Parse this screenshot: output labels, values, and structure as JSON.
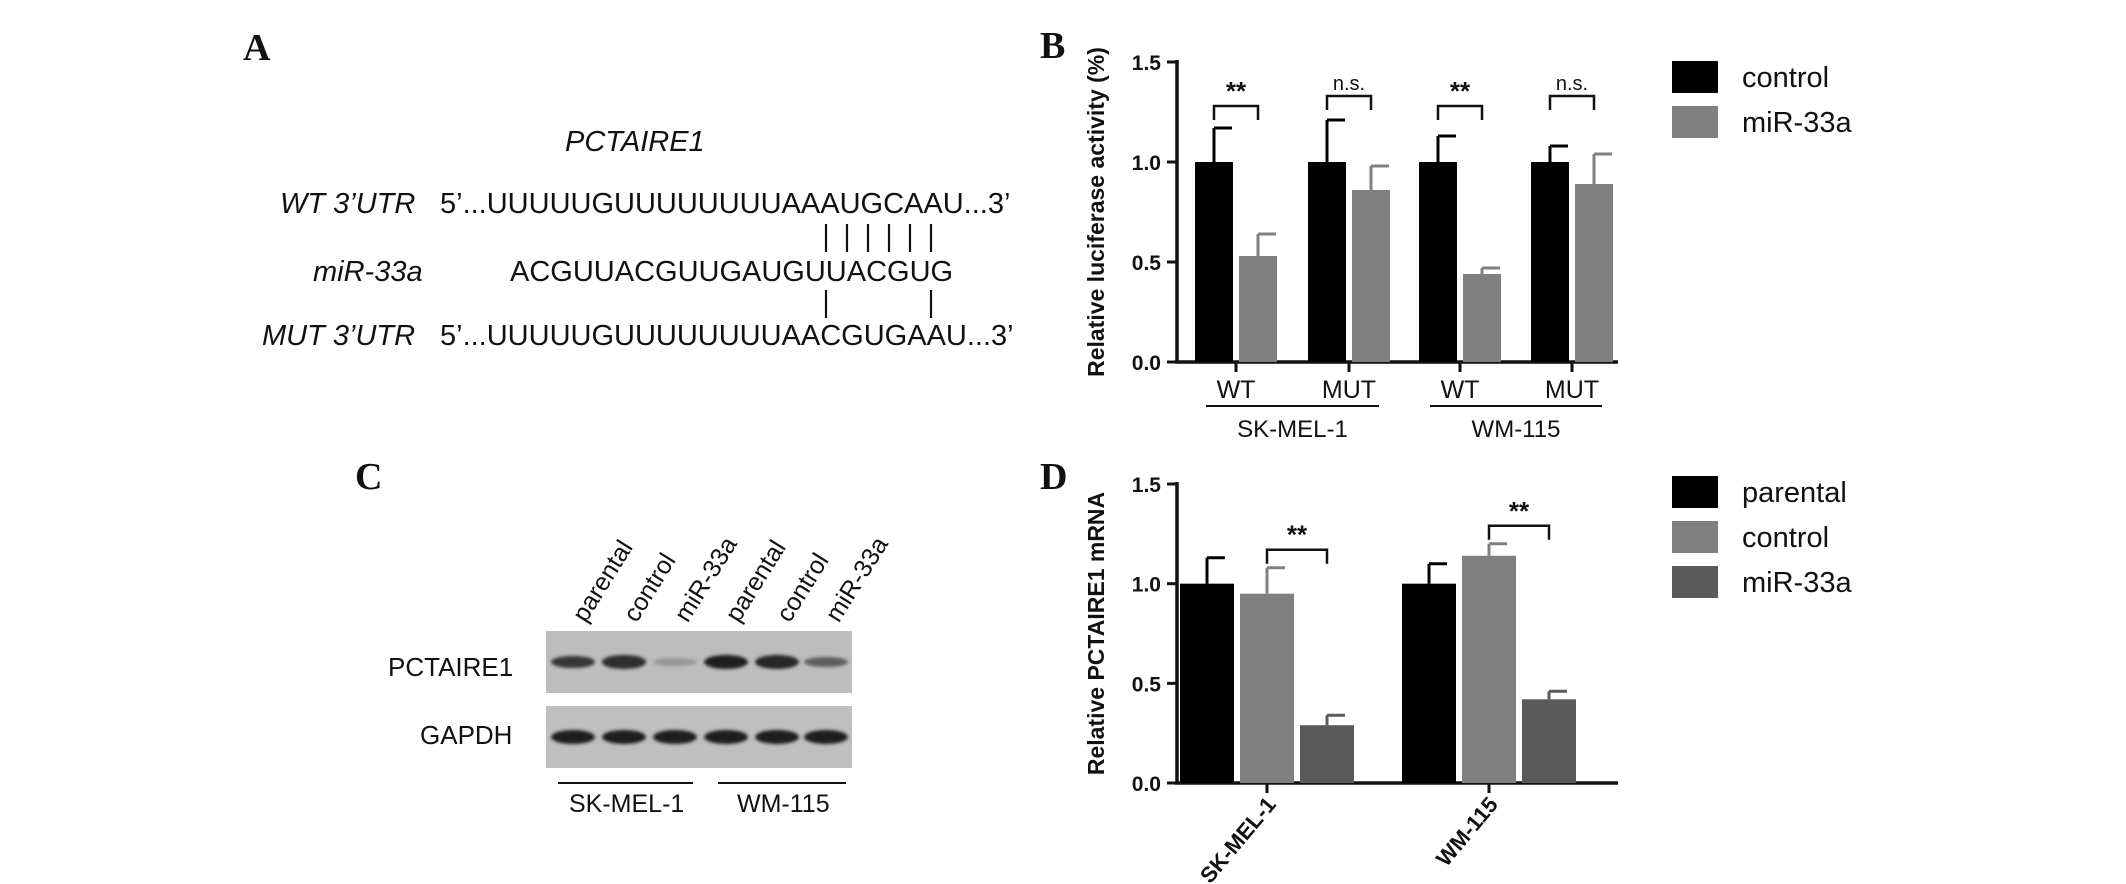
{
  "panels": {
    "A": "A",
    "B": "B",
    "C": "C",
    "D": "D"
  },
  "panelA": {
    "gene": "PCTAIRE1",
    "rows": [
      {
        "label": "WT 3’UTR",
        "seq": "5’...UUUUUGUUUUUUUUAAAUGCAAU...3’"
      },
      {
        "label": "miR-33a",
        "seq": "ACGUUACGUUGAUGUUACGUG"
      },
      {
        "label": "MUT 3’UTR",
        "seq": "5’...UUUUUGUUUUUUUUAACGUGAAU...3’"
      }
    ]
  },
  "panelC": {
    "lanes": [
      "parental",
      "control",
      "miR-33a",
      "parental",
      "control",
      "miR-33a"
    ],
    "blots": [
      "PCTAIRE1",
      "GAPDH"
    ],
    "groups": [
      "SK-MEL-1",
      "WM-115"
    ],
    "band_intensity": {
      "PCTAIRE1": [
        0.85,
        0.9,
        0.25,
        1.0,
        0.95,
        0.6
      ],
      "GAPDH": [
        1.0,
        1.0,
        1.0,
        1.0,
        1.0,
        1.0
      ]
    }
  },
  "chart_data": [
    {
      "type": "bar",
      "panel": "B",
      "ylabel": "Relative luciferase activity  (%)",
      "ylim": [
        0,
        1.5
      ],
      "yticks": [
        "0.0",
        "0.5",
        "1.0",
        "1.5"
      ],
      "categories": [
        "WT",
        "MUT",
        "WT",
        "MUT"
      ],
      "groups": [
        "SK-MEL-1",
        "WM-115"
      ],
      "series": [
        {
          "name": "control",
          "color": "#000000",
          "values": [
            1.0,
            1.0,
            1.0,
            1.0
          ],
          "errors": [
            0.17,
            0.21,
            0.13,
            0.08
          ]
        },
        {
          "name": "miR-33a",
          "color": "#808080",
          "values": [
            0.53,
            0.86,
            0.44,
            0.89
          ],
          "errors": [
            0.11,
            0.12,
            0.03,
            0.15
          ]
        }
      ],
      "annotations": [
        "**",
        "n.s.",
        "**",
        "n.s."
      ],
      "legend": "right"
    },
    {
      "type": "bar",
      "panel": "D",
      "ylabel": "Relative PCTAIRE1 mRNA",
      "ylim": [
        0,
        1.5
      ],
      "yticks": [
        "0.0",
        "0.5",
        "1.0",
        "1.5"
      ],
      "categories": [
        "SK-MEL-1",
        "WM-115"
      ],
      "series": [
        {
          "name": "parental",
          "color": "#000000",
          "values": [
            1.0,
            1.0
          ],
          "errors": [
            0.13,
            0.1
          ]
        },
        {
          "name": "control",
          "color": "#808080",
          "values": [
            0.95,
            1.14
          ],
          "errors": [
            0.13,
            0.06
          ]
        },
        {
          "name": "miR-33a",
          "color": "#5a5a5a",
          "values": [
            0.29,
            0.42
          ],
          "errors": [
            0.05,
            0.04
          ]
        }
      ],
      "annotations": [
        "**",
        "**"
      ],
      "legend": "right"
    }
  ]
}
